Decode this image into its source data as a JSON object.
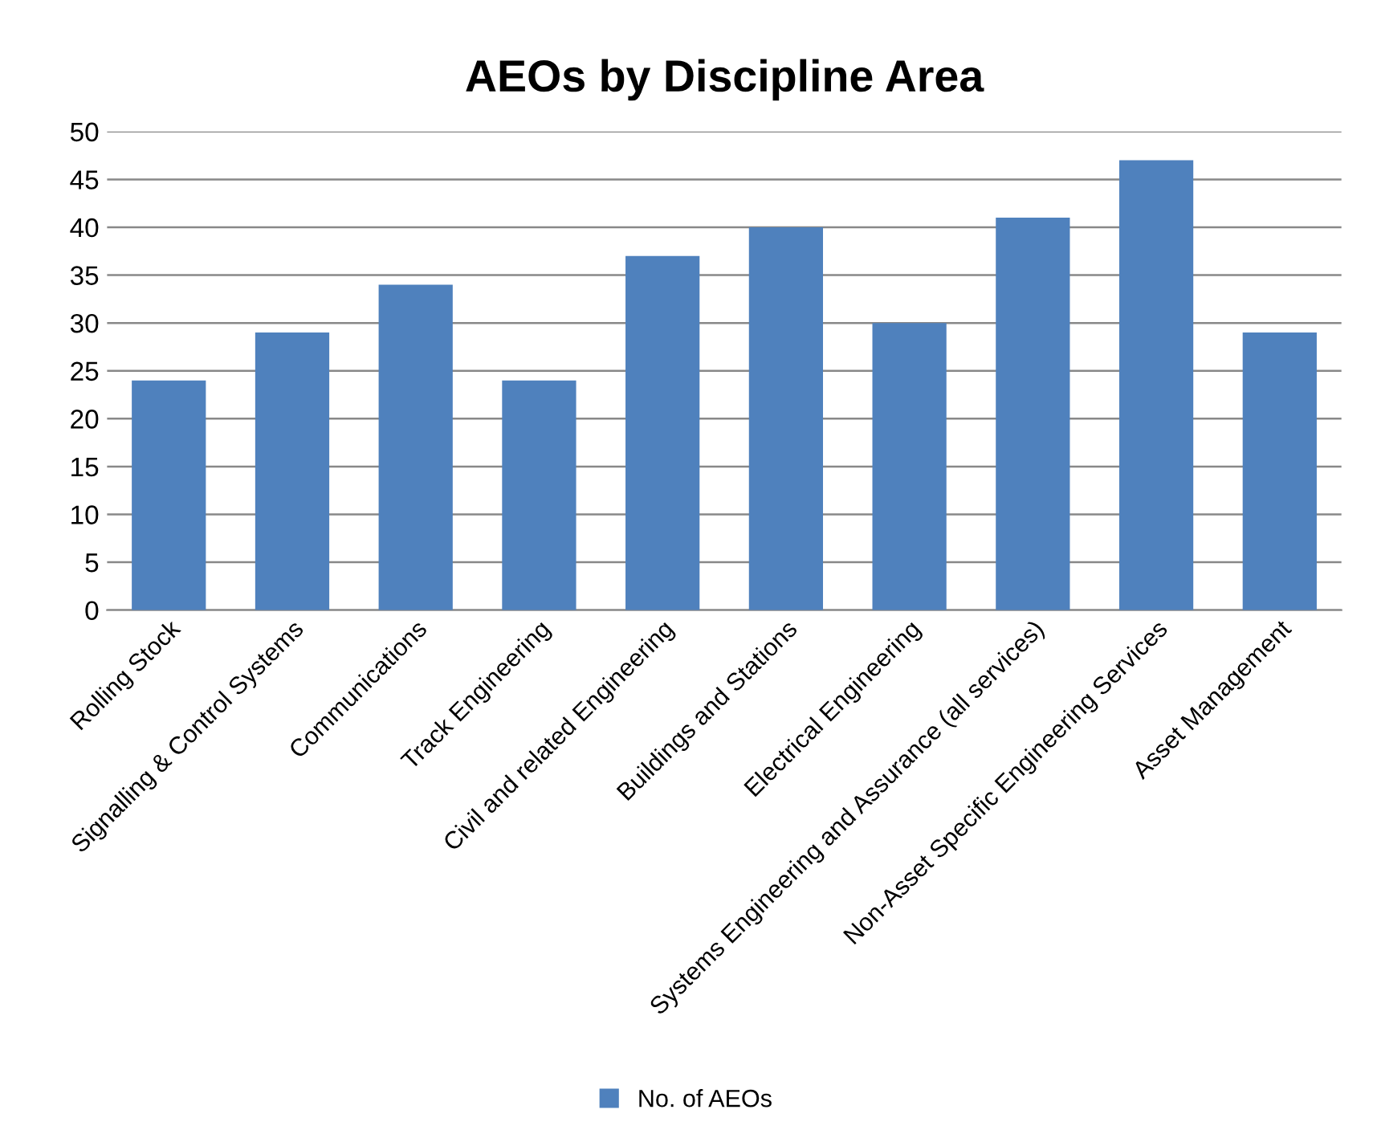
{
  "chart_data": {
    "type": "bar",
    "title": "AEOs by Discipline Area",
    "categories": [
      "Rolling Stock",
      "Signalling & Control Systems",
      "Communications",
      "Track Engineering",
      "Civil and related Engineering",
      "Buildings and Stations",
      "Electrical Engineering",
      "Systems Engineering and Assurance (all services)",
      "Non-Asset Specific Engineering Services",
      "Asset Management"
    ],
    "series": [
      {
        "name": "No. of AEOs",
        "color": "#4f81bd",
        "values": [
          24,
          29,
          34,
          24,
          37,
          40,
          30,
          41,
          47,
          29
        ]
      }
    ],
    "ylim": [
      0,
      50
    ],
    "yticks": [
      0,
      5,
      10,
      15,
      20,
      25,
      30,
      35,
      40,
      45,
      50
    ],
    "grid": "y",
    "legend": "bottom"
  }
}
